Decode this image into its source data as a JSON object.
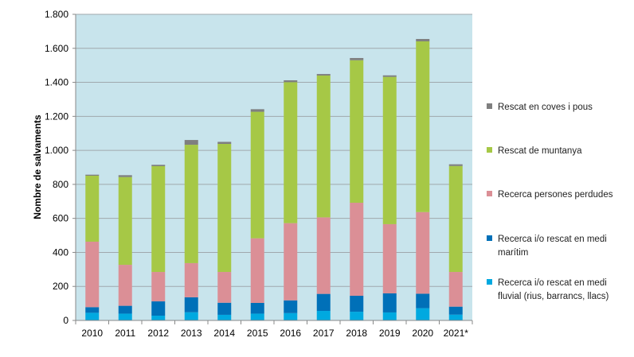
{
  "chart_data": {
    "type": "bar",
    "stacked": true,
    "title": "",
    "xlabel": "",
    "ylabel": "Nombre de salvaments",
    "ylim": [
      0,
      1800
    ],
    "yticks": [
      0,
      200,
      400,
      600,
      800,
      1000,
      1200,
      1400,
      1600,
      1800
    ],
    "ytick_labels": [
      "0",
      "200",
      "400",
      "600",
      "800",
      "1.000",
      "1.200",
      "1.400",
      "1.600",
      "1.800"
    ],
    "grid": true,
    "legend_position": "right",
    "categories": [
      "2010",
      "2011",
      "2012",
      "2013",
      "2014",
      "2015",
      "2016",
      "2017",
      "2018",
      "2019",
      "2020",
      "2021*"
    ],
    "series": [
      {
        "name": "Recerca i/o rescat en medi fluvial (rius, barrancs, llacs)",
        "legend_lines": [
          "Recerca i/o rescat en medi",
          "fluvial (rius, barrancs, llacs)"
        ],
        "color": "#00a9e0",
        "values": [
          45,
          40,
          28,
          48,
          33,
          40,
          43,
          56,
          51,
          47,
          72,
          34
        ]
      },
      {
        "name": "Recerca i/o rescat en medi marítim",
        "legend_lines": [
          "Recerca i/o rescat en medi",
          "marítim"
        ],
        "color": "#0070b8",
        "values": [
          33,
          46,
          84,
          88,
          71,
          63,
          75,
          100,
          94,
          112,
          85,
          47
        ]
      },
      {
        "name": "Recerca persones perdudes",
        "legend_lines": [
          "Recerca persones perdudes"
        ],
        "color": "#db8f96",
        "values": [
          385,
          241,
          173,
          201,
          181,
          380,
          454,
          450,
          547,
          407,
          480,
          204
        ]
      },
      {
        "name": "Rescat de muntanya",
        "legend_lines": [
          "Rescat de muntanya"
        ],
        "color": "#a6c846",
        "values": [
          388,
          516,
          622,
          696,
          753,
          744,
          829,
          834,
          838,
          866,
          1004,
          623
        ]
      },
      {
        "name": "Rescat en coves i pous",
        "legend_lines": [
          "Rescat en coves i pous"
        ],
        "color": "#7f7f7f",
        "values": [
          6,
          11,
          8,
          28,
          12,
          15,
          11,
          9,
          13,
          9,
          14,
          10
        ]
      }
    ],
    "plot_background": "#c8e4ec"
  }
}
